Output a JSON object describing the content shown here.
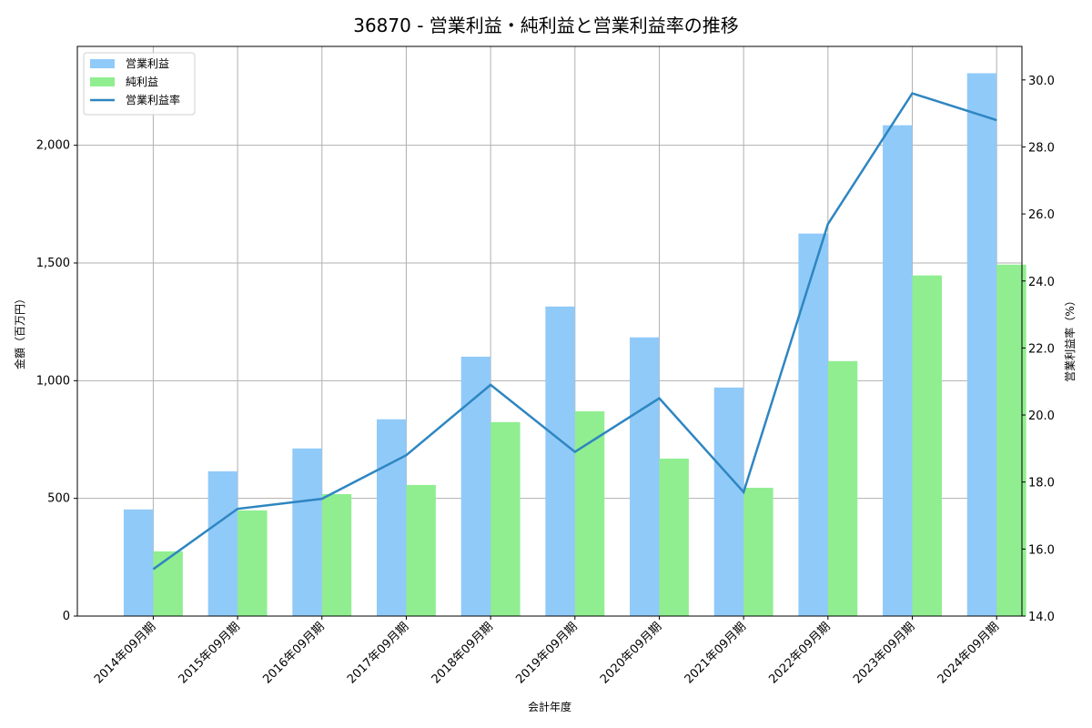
{
  "chart_data": {
    "type": "bar",
    "title": "36870 - 営業利益・純利益と営業利益率の推移",
    "xlabel": "会計年度",
    "ylabel": "金額（百万円）",
    "y2label": "営業利益率（%）",
    "categories": [
      "2014年09月期",
      "2015年09月期",
      "2016年09月期",
      "2017年09月期",
      "2018年09月期",
      "2019年09月期",
      "2020年09月期",
      "2021年09月期",
      "2022年09月期",
      "2023年09月期",
      "2024年09月期"
    ],
    "series": [
      {
        "name": "営業利益",
        "type": "bar",
        "axis": "left",
        "color": "#90CAF9",
        "values": [
          453,
          615,
          712,
          836,
          1102,
          1315,
          1184,
          971,
          1625,
          2085,
          2306
        ]
      },
      {
        "name": "純利益",
        "type": "bar",
        "axis": "left",
        "color": "#90EE90",
        "values": [
          275,
          449,
          518,
          557,
          824,
          870,
          669,
          545,
          1083,
          1447,
          1493
        ]
      },
      {
        "name": "営業利益率",
        "type": "line",
        "axis": "right",
        "color": "#2E86C1",
        "values": [
          15.4,
          17.2,
          17.5,
          18.8,
          20.9,
          18.9,
          20.5,
          17.7,
          25.7,
          29.6,
          28.8
        ]
      }
    ],
    "ylim": [
      0,
      2420
    ],
    "y2lim": [
      14.0,
      31.0
    ],
    "yticks": [
      0,
      500,
      1000,
      1500,
      2000
    ],
    "ytick_labels": [
      "0",
      "500",
      "1,000",
      "1,500",
      "2,000"
    ],
    "y2ticks": [
      14.0,
      16.0,
      18.0,
      20.0,
      22.0,
      24.0,
      26.0,
      28.0,
      30.0
    ],
    "y2tick_labels": [
      "14.0",
      "16.0",
      "18.0",
      "20.0",
      "22.0",
      "24.0",
      "26.0",
      "28.0",
      "30.0"
    ],
    "grid": true,
    "legend_position": "upper left"
  }
}
